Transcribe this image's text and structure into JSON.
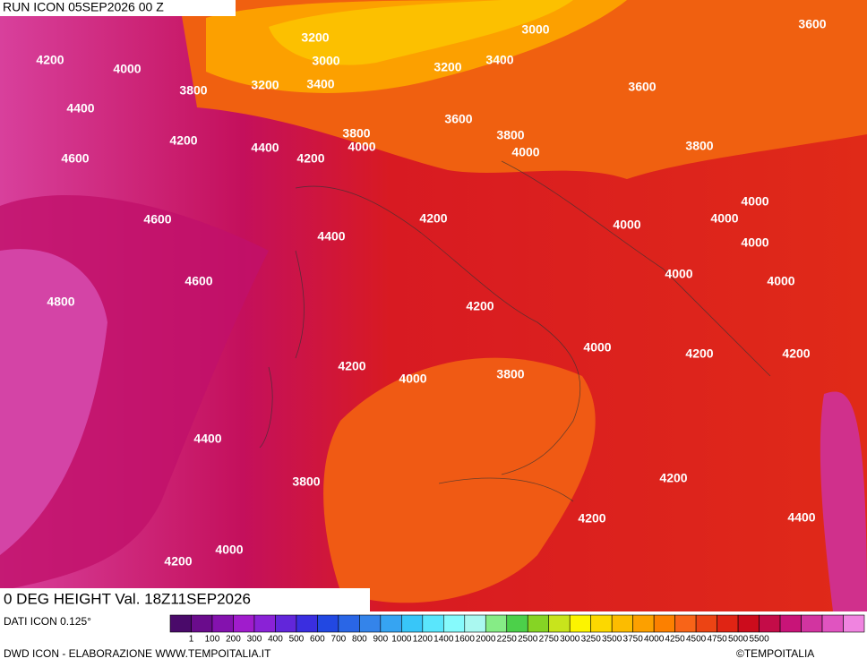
{
  "header": {
    "title": "RUN ICON 05SEP2026 00 Z"
  },
  "map": {
    "contour_labels": [
      "3200",
      "3000",
      "3600",
      "4200",
      "4000",
      "3000",
      "3200",
      "3400",
      "3800",
      "3200",
      "3400",
      "3600",
      "4400",
      "3600",
      "4200",
      "4400",
      "3800",
      "4000",
      "4200",
      "3800",
      "4000",
      "3800",
      "4600",
      "4000",
      "4600",
      "4200",
      "4000",
      "4000",
      "4400",
      "4000",
      "4600",
      "4000",
      "4000",
      "4800",
      "4200",
      "4000",
      "4200",
      "4200",
      "4200",
      "4000",
      "3800",
      "4400",
      "3800",
      "4200",
      "4200",
      "4400",
      "4000",
      "4200"
    ]
  },
  "footer": {
    "title": "0 DEG HEIGHT Val. 18Z11SEP2026",
    "source": "DATI ICON 0.125°",
    "credit": "DWD ICON - ELABORAZIONE WWW.TEMPOITALIA.IT",
    "copyright": "©TEMPOITALIA"
  },
  "legend": {
    "labels": [
      "1",
      "100",
      "200",
      "300",
      "400",
      "500",
      "600",
      "700",
      "800",
      "900",
      "1000",
      "1200",
      "1400",
      "1600",
      "2000",
      "2250",
      "2500",
      "2750",
      "3000",
      "3250",
      "3500",
      "3750",
      "4000",
      "4250",
      "4500",
      "4750",
      "5000",
      "5500"
    ],
    "colors": [
      "#4a0a6a",
      "#6a0c8c",
      "#8412ae",
      "#a01ccc",
      "#8a22d6",
      "#6226da",
      "#3a2ee0",
      "#2248e2",
      "#2a66e6",
      "#3484ea",
      "#36a4f2",
      "#38c6f8",
      "#5ae6fc",
      "#86fafc",
      "#aaf8f0",
      "#86ec86",
      "#4cd04a",
      "#86d424",
      "#c8e41c",
      "#fcf400",
      "#fcd800",
      "#fcbc00",
      "#fca000",
      "#fc8000",
      "#f86418",
      "#ec4414",
      "#e02414",
      "#cc0c1c",
      "#c40c48",
      "#c81478",
      "#d234a0",
      "#e054c0",
      "#f084e0"
    ]
  }
}
